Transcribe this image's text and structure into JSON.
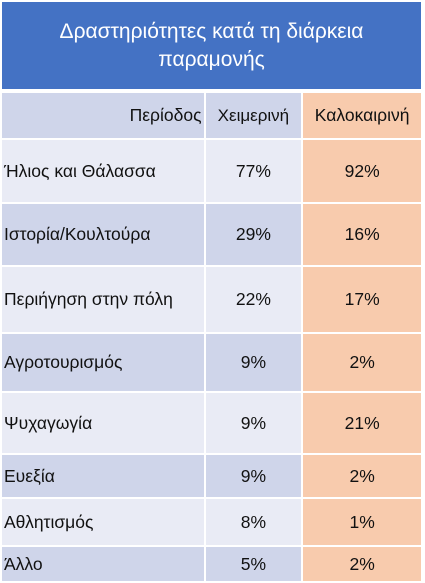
{
  "table": {
    "title": "Δραστηριότητες κατά τη διάρκεια παραμονής",
    "header": {
      "period": "Περίοδος",
      "winter": "Χειμερινή",
      "summer": "Καλοκαιρινή"
    },
    "rows": [
      {
        "activity": "Ήλιος και Θάλασσα",
        "winter": "77%",
        "summer": "92%"
      },
      {
        "activity": "Ιστορία/Κουλτούρα",
        "winter": "29%",
        "summer": "16%"
      },
      {
        "activity": "Περιήγηση  στην πόλη",
        "winter": "22%",
        "summer": "17%"
      },
      {
        "activity": "Αγροτουρισμός",
        "winter": "9%",
        "summer": "2%"
      },
      {
        "activity": "Ψυχαγωγία",
        "winter": "9%",
        "summer": "21%"
      },
      {
        "activity": "Ευεξία",
        "winter": "9%",
        "summer": "2%"
      },
      {
        "activity": "Αθλητισμός",
        "winter": "8%",
        "summer": "1%"
      },
      {
        "activity": "Άλλο",
        "winter": "5%",
        "summer": "2%"
      }
    ],
    "colors": {
      "title_bg": "#4472c4",
      "row_dark": "#cfd5ea",
      "row_light": "#e9ebf5",
      "summer_col": "#f8cbad"
    }
  }
}
